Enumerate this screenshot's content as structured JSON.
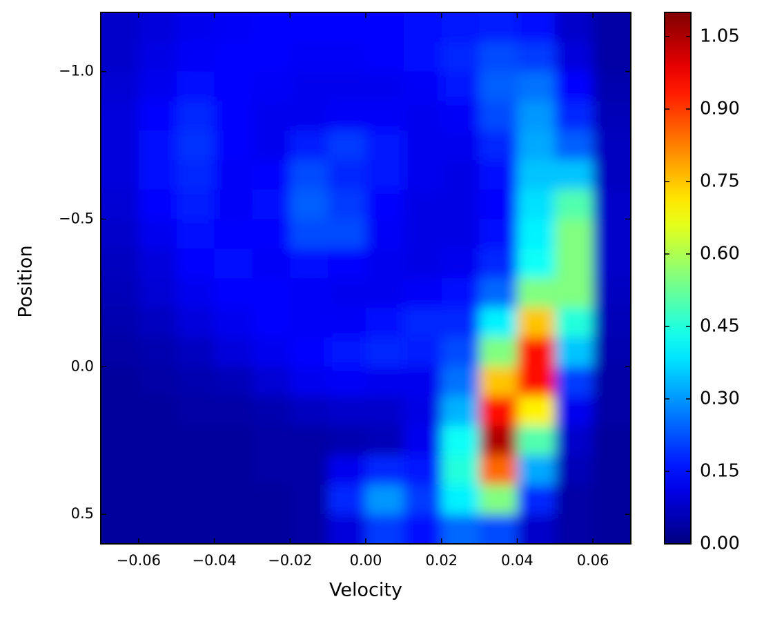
{
  "chart_data": {
    "type": "heatmap",
    "colormap": "jet",
    "xlabel": "Velocity",
    "ylabel": "Position",
    "xlim": [
      -0.07,
      0.07
    ],
    "ylim": [
      0.6,
      -1.2
    ],
    "clim": [
      0,
      1.1
    ],
    "xticks": [
      {
        "value": -0.06,
        "label": "−0.06"
      },
      {
        "value": -0.04,
        "label": "−0.04"
      },
      {
        "value": -0.02,
        "label": "−0.02"
      },
      {
        "value": 0,
        "label": "0.00"
      },
      {
        "value": 0.02,
        "label": "0.02"
      },
      {
        "value": 0.04,
        "label": "0.04"
      },
      {
        "value": 0.06,
        "label": "0.06"
      }
    ],
    "yticks": [
      {
        "value": -1.0,
        "label": "−1.0"
      },
      {
        "value": -0.5,
        "label": "−0.5"
      },
      {
        "value": 0,
        "label": "0.0"
      },
      {
        "value": 0.5,
        "label": "0.5"
      }
    ],
    "cticks": [
      {
        "value": 0,
        "label": "0.00"
      },
      {
        "value": 0.15,
        "label": "0.15"
      },
      {
        "value": 0.3,
        "label": "0.30"
      },
      {
        "value": 0.45,
        "label": "0.45"
      },
      {
        "value": 0.6,
        "label": "0.60"
      },
      {
        "value": 0.75,
        "label": "0.75"
      },
      {
        "value": 0.9,
        "label": "0.90"
      },
      {
        "value": 1.05,
        "label": "1.05"
      }
    ],
    "x": [
      -0.065,
      -0.055,
      -0.045,
      -0.035,
      -0.025,
      -0.015,
      -0.005,
      0.005,
      0.015,
      0.025,
      0.035,
      0.045,
      0.055,
      0.065
    ],
    "y": [
      -1.15,
      -1.05,
      -0.95,
      -0.85,
      -0.75,
      -0.65,
      -0.55,
      -0.45,
      -0.35,
      -0.25,
      -0.15,
      -0.05,
      0.05,
      0.15,
      0.25,
      0.35,
      0.45,
      0.55
    ],
    "z": [
      [
        0.08,
        0.1,
        0.12,
        0.13,
        0.14,
        0.14,
        0.14,
        0.14,
        0.15,
        0.16,
        0.17,
        0.15,
        0.08,
        0.04
      ],
      [
        0.08,
        0.11,
        0.13,
        0.14,
        0.14,
        0.13,
        0.13,
        0.14,
        0.15,
        0.18,
        0.22,
        0.2,
        0.1,
        0.04
      ],
      [
        0.09,
        0.12,
        0.15,
        0.14,
        0.13,
        0.12,
        0.12,
        0.12,
        0.13,
        0.16,
        0.24,
        0.26,
        0.14,
        0.05
      ],
      [
        0.1,
        0.14,
        0.18,
        0.14,
        0.12,
        0.12,
        0.13,
        0.13,
        0.12,
        0.13,
        0.22,
        0.3,
        0.18,
        0.06
      ],
      [
        0.1,
        0.15,
        0.19,
        0.14,
        0.12,
        0.17,
        0.2,
        0.16,
        0.12,
        0.12,
        0.18,
        0.32,
        0.24,
        0.07
      ],
      [
        0.1,
        0.15,
        0.18,
        0.13,
        0.14,
        0.22,
        0.18,
        0.16,
        0.12,
        0.11,
        0.15,
        0.35,
        0.35,
        0.07
      ],
      [
        0.09,
        0.14,
        0.17,
        0.13,
        0.15,
        0.24,
        0.2,
        0.14,
        0.11,
        0.11,
        0.14,
        0.38,
        0.5,
        0.08
      ],
      [
        0.08,
        0.12,
        0.15,
        0.14,
        0.14,
        0.22,
        0.22,
        0.13,
        0.11,
        0.11,
        0.15,
        0.4,
        0.55,
        0.08
      ],
      [
        0.07,
        0.1,
        0.14,
        0.15,
        0.13,
        0.15,
        0.14,
        0.12,
        0.11,
        0.12,
        0.18,
        0.42,
        0.55,
        0.08
      ],
      [
        0.06,
        0.09,
        0.12,
        0.14,
        0.14,
        0.13,
        0.12,
        0.12,
        0.13,
        0.15,
        0.25,
        0.55,
        0.55,
        0.07
      ],
      [
        0.05,
        0.07,
        0.1,
        0.12,
        0.14,
        0.13,
        0.13,
        0.15,
        0.18,
        0.18,
        0.4,
        0.75,
        0.45,
        0.06
      ],
      [
        0.04,
        0.05,
        0.07,
        0.1,
        0.12,
        0.14,
        0.16,
        0.18,
        0.17,
        0.22,
        0.55,
        0.95,
        0.35,
        0.05
      ],
      [
        0.03,
        0.04,
        0.05,
        0.06,
        0.09,
        0.12,
        0.13,
        0.12,
        0.12,
        0.26,
        0.75,
        0.95,
        0.2,
        0.04
      ],
      [
        0.03,
        0.03,
        0.04,
        0.04,
        0.05,
        0.07,
        0.08,
        0.08,
        0.11,
        0.33,
        0.95,
        0.7,
        0.12,
        0.04
      ],
      [
        0.03,
        0.03,
        0.03,
        0.03,
        0.04,
        0.04,
        0.05,
        0.06,
        0.12,
        0.42,
        1.05,
        0.5,
        0.08,
        0.03
      ],
      [
        0.03,
        0.03,
        0.03,
        0.03,
        0.04,
        0.04,
        0.12,
        0.18,
        0.16,
        0.45,
        0.85,
        0.32,
        0.06,
        0.03
      ],
      [
        0.03,
        0.03,
        0.03,
        0.03,
        0.03,
        0.04,
        0.18,
        0.3,
        0.2,
        0.4,
        0.55,
        0.18,
        0.04,
        0.03
      ],
      [
        0.03,
        0.03,
        0.03,
        0.03,
        0.03,
        0.04,
        0.1,
        0.2,
        0.15,
        0.25,
        0.22,
        0.08,
        0.04,
        0.03
      ]
    ]
  }
}
